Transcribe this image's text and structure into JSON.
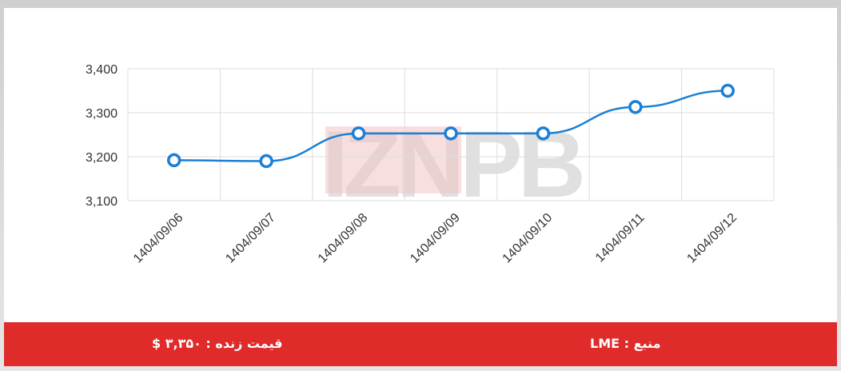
{
  "chart_data": {
    "type": "line",
    "categories": [
      "1404/09/06",
      "1404/09/07",
      "1404/09/08",
      "1404/09/09",
      "1404/09/10",
      "1404/09/11",
      "1404/09/12"
    ],
    "values": [
      3192,
      3190,
      3253,
      3253,
      3253,
      3313,
      3350
    ],
    "yticks": [
      "3,100",
      "3,200",
      "3,300",
      "3,400"
    ],
    "ylim": [
      3100,
      3400
    ],
    "grid": true,
    "line_color": "#1a7fd6",
    "marker_fill": "#ffffff"
  },
  "watermark": "IZNPB",
  "footer": {
    "live_price": "قیمت زنده : ۳,۳۵۰ $",
    "source": "منبع : LME",
    "bg_color": "#e02b2b"
  }
}
